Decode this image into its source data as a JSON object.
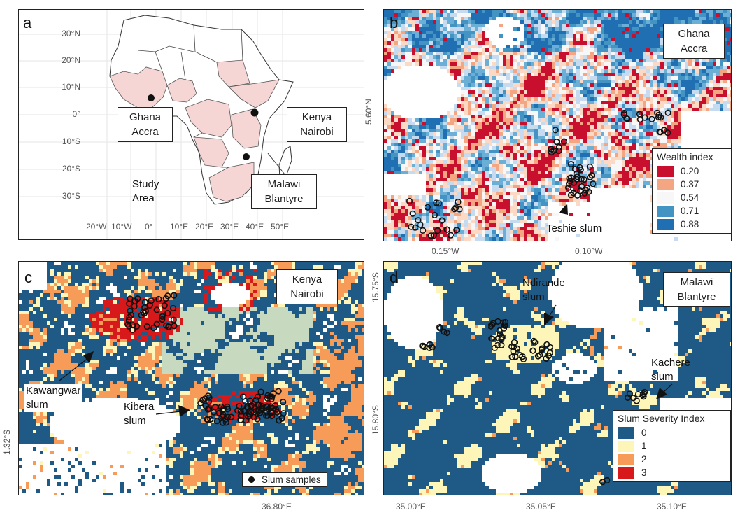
{
  "panel_a": {
    "label": "a",
    "lat_ticks": [
      "30°N",
      "20°N",
      "10°N",
      "0°",
      "10°S",
      "20°S",
      "30°S"
    ],
    "lon_ticks": [
      "20°W",
      "10°W",
      "0°",
      "10°E",
      "20°E",
      "30°E",
      "40°E",
      "50°E"
    ],
    "callouts": {
      "ghana": "Ghana\nAccra",
      "kenya": "Kenya\nNairobi",
      "malawi": "Malawi\nBlantyre"
    },
    "study_area": "Study\nArea",
    "colors": {
      "study_area_fill": "#f6d5d5",
      "country_fill": "#ffffff"
    }
  },
  "panel_b": {
    "label": "b",
    "location": "Ghana\nAccra",
    "y_tick": "5.60°N",
    "x_ticks": [
      "0.15°W",
      "0.10°W"
    ],
    "slum_annotation": "Teshie slum",
    "legend_title": "Wealth index",
    "legend": [
      {
        "value": "0.20",
        "color": "#c8102e"
      },
      {
        "value": "0.37",
        "color": "#f4a582"
      },
      {
        "value": "0.54",
        "color": "#f7f7f7"
      },
      {
        "value": "0.71",
        "color": "#4393c3"
      },
      {
        "value": "0.88",
        "color": "#1f6fb2"
      }
    ]
  },
  "panel_c": {
    "label": "c",
    "location": "Kenya\nNairobi",
    "y_tick": "1.32°S",
    "x_tick": "36.80°E",
    "annotations": {
      "kawangwar": "Kawangwar\nslum",
      "kibera": "Kibera\nslum"
    },
    "samples_legend": "Slum samples"
  },
  "panel_d": {
    "label": "d",
    "location": "Malawi\nBlantyre",
    "y_ticks": [
      "15.75°S",
      "15.80°S"
    ],
    "x_ticks": [
      "35.00°E",
      "35.05°E",
      "35.10°E"
    ],
    "annotations": {
      "ndirande": "Ndirande\nslum",
      "kachere": "Kachere\nslum"
    },
    "legend_title": "Slum Severity Index",
    "legend": [
      {
        "value": "0",
        "color": "#1e5a85"
      },
      {
        "value": "1",
        "color": "#fdf6b8"
      },
      {
        "value": "2",
        "color": "#f79c58"
      },
      {
        "value": "3",
        "color": "#d7191c"
      }
    ]
  }
}
